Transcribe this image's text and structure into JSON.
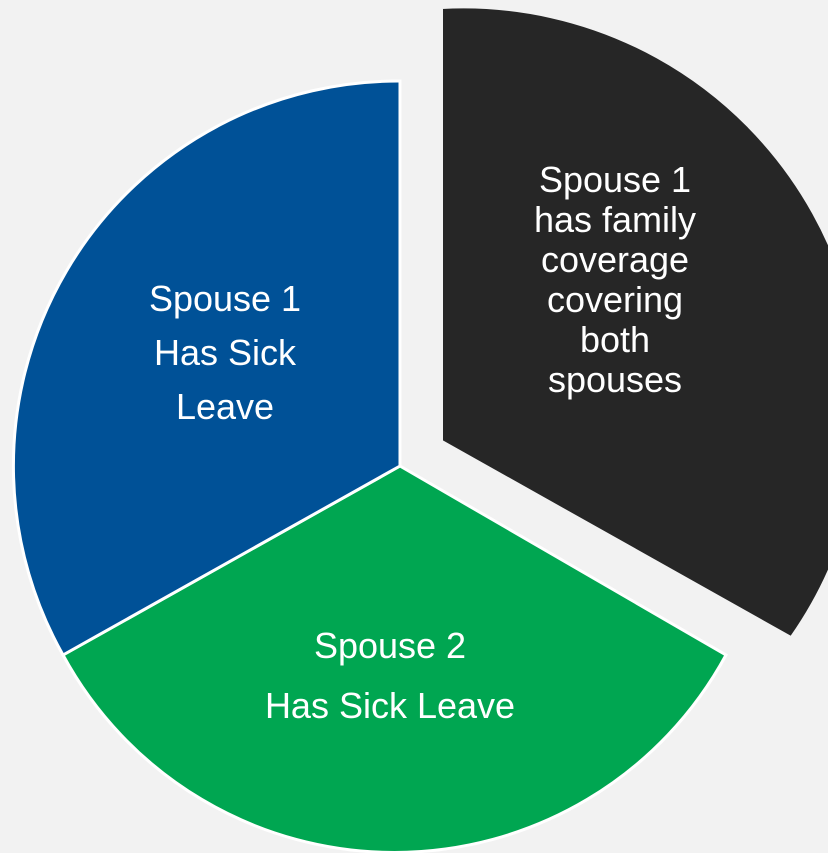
{
  "segments": [
    {
      "id": "dark",
      "color": "#262626",
      "lines": [
        "Spouse 1",
        "has family",
        "coverage",
        "covering",
        "both",
        "spouses"
      ]
    },
    {
      "id": "green",
      "color": "#00a651",
      "lines": [
        "Spouse 2",
        "Has Sick Leave"
      ]
    },
    {
      "id": "blue",
      "color": "#005197",
      "lines": [
        "Spouse 1",
        "Has Sick",
        "Leave"
      ]
    }
  ]
}
